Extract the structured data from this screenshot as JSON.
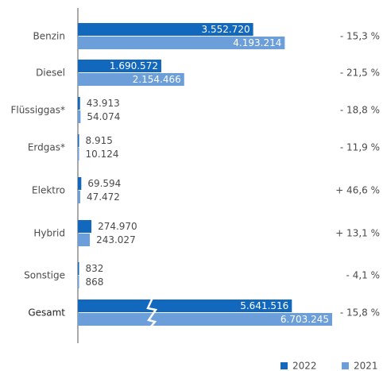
{
  "chart_data": {
    "type": "hbar",
    "categories": [
      "Benzin",
      "Diesel",
      "Flüssiggas*",
      "Erdgas*",
      "Elektro",
      "Hybrid",
      "Sonstige",
      "Gesamt"
    ],
    "series": [
      {
        "name": "2022",
        "color": "#1268bd",
        "values": [
          3552720,
          1690572,
          43913,
          8915,
          69594,
          274970,
          832,
          5641516
        ],
        "value_labels": [
          "3.552.720",
          "1.690.572",
          "43.913",
          "8.915",
          "69.594",
          "274.970",
          "832",
          "5.641.516"
        ]
      },
      {
        "name": "2021",
        "color": "#6c9fd9",
        "values": [
          4193214,
          2154466,
          54074,
          10124,
          47472,
          243027,
          868,
          6703245
        ],
        "value_labels": [
          "4.193.214",
          "2.154.466",
          "54.074",
          "10.124",
          "47.472",
          "243.027",
          "868",
          "6.703.245"
        ]
      }
    ],
    "change_labels": [
      "- 15,3 %",
      "- 21,5 %",
      "- 18,8 %",
      "- 11,9 %",
      "+ 46,6 %",
      "+ 13,1 %",
      "- 4,1 %",
      "- 15,8 %"
    ],
    "xlim": [
      0,
      4300000
    ],
    "axis_break": "Gesamt",
    "legend": "bottom-right"
  }
}
